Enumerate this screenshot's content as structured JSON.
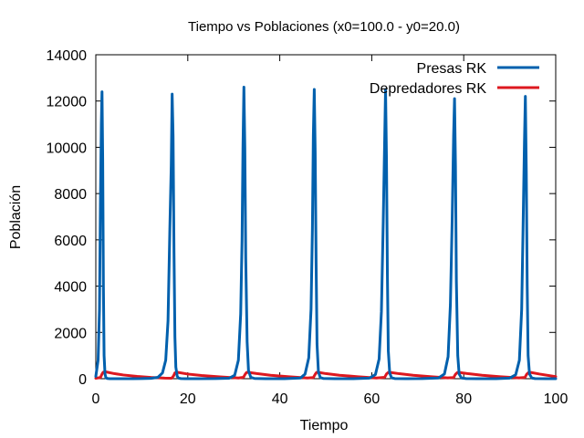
{
  "chart_data": {
    "type": "line",
    "title": "Tiempo vs Poblaciones (x0=100.0 - y0=20.0)",
    "xlabel": "Tiempo",
    "ylabel": "Población",
    "xlim": [
      0,
      100
    ],
    "ylim": [
      0,
      14000
    ],
    "xticks": [
      0,
      20,
      40,
      60,
      80,
      100
    ],
    "yticks": [
      0,
      2000,
      4000,
      6000,
      8000,
      10000,
      12000,
      14000
    ],
    "xtick_labels": [
      "0",
      "20",
      "40",
      "60",
      "80",
      "100"
    ],
    "ytick_labels": [
      "0",
      "2000",
      "4000",
      "6000",
      "8000",
      "10000",
      "12000",
      "14000"
    ],
    "grid": false,
    "legend_position": "top-right",
    "series": [
      {
        "name": "Presas RK",
        "color": "#0060ad",
        "x": [
          0,
          0.5,
          0.8,
          1.0,
          1.2,
          1.35,
          1.5,
          1.65,
          1.8,
          2.0,
          2.2,
          2.5,
          3.0,
          4.0,
          6.0,
          8.0,
          10.0,
          12.0,
          13.5,
          14.5,
          15.2,
          15.7,
          16.1,
          16.4,
          16.6,
          16.8,
          17.0,
          17.2,
          17.4,
          17.7,
          18.0,
          18.5,
          19.5,
          22.0,
          26.0,
          29.0,
          30.2,
          31.0,
          31.5,
          31.8,
          32.0,
          32.2,
          32.4,
          32.6,
          32.9,
          33.2,
          33.7,
          34.5,
          37.0,
          41.0,
          44.5,
          45.5,
          46.3,
          46.8,
          47.1,
          47.3,
          47.5,
          47.7,
          47.9,
          48.1,
          48.4,
          48.8,
          49.5,
          52.0,
          56.0,
          59.5,
          60.8,
          61.6,
          62.1,
          62.5,
          62.8,
          63.0,
          63.2,
          63.4,
          63.6,
          63.9,
          64.3,
          65.0,
          67.5,
          71.0,
          74.5,
          75.8,
          76.6,
          77.1,
          77.5,
          77.8,
          78.0,
          78.2,
          78.4,
          78.7,
          79.0,
          79.5,
          80.5,
          83.0,
          87.0,
          90.0,
          91.3,
          92.1,
          92.6,
          92.9,
          93.2,
          93.4,
          93.6,
          93.8,
          94.0,
          94.3,
          94.8,
          95.5,
          98.0,
          100.0
        ],
        "values": [
          100,
          800,
          3000,
          7500,
          11000,
          12400,
          9500,
          4000,
          1000,
          200,
          40,
          10,
          2,
          1,
          1,
          2,
          4,
          15,
          60,
          250,
          800,
          2500,
          6500,
          9200,
          12300,
          10500,
          5500,
          1800,
          500,
          100,
          25,
          5,
          1,
          1,
          3,
          20,
          150,
          800,
          2800,
          6000,
          10000,
          12600,
          10000,
          5200,
          1600,
          350,
          60,
          10,
          1,
          2,
          30,
          200,
          900,
          3000,
          6500,
          10500,
          12500,
          9800,
          5000,
          1500,
          300,
          50,
          8,
          1,
          2,
          25,
          180,
          850,
          2900,
          6800,
          10200,
          12500,
          9500,
          4500,
          1200,
          250,
          40,
          6,
          1,
          3,
          30,
          200,
          950,
          3200,
          7000,
          10500,
          12100,
          9200,
          4200,
          1000,
          200,
          30,
          5,
          1,
          2,
          25,
          170,
          800,
          3000,
          6500,
          10200,
          12200,
          9000,
          4000,
          1000,
          200,
          30,
          5,
          1,
          2
        ]
      },
      {
        "name": "Depredadores RK",
        "color": "#dd181f",
        "x": [
          0,
          1.0,
          1.3,
          1.6,
          2.0,
          2.5,
          4.0,
          6.0,
          9.0,
          12.0,
          15.0,
          16.5,
          16.9,
          17.2,
          17.6,
          18.2,
          20.0,
          23.0,
          27.0,
          31.0,
          32.1,
          32.5,
          32.8,
          33.3,
          35.0,
          38.0,
          42.0,
          46.0,
          47.3,
          47.7,
          48.0,
          48.5,
          50.0,
          53.0,
          57.0,
          61.0,
          62.8,
          63.2,
          63.6,
          64.2,
          66.0,
          69.0,
          73.0,
          76.5,
          77.8,
          78.2,
          78.6,
          79.2,
          81.0,
          84.0,
          88.0,
          92.0,
          93.3,
          93.7,
          94.1,
          94.7,
          96.5,
          100.0
        ],
        "values": [
          20,
          50,
          180,
          280,
          300,
          280,
          220,
          160,
          100,
          55,
          25,
          20,
          120,
          250,
          280,
          260,
          200,
          140,
          80,
          30,
          60,
          200,
          270,
          270,
          220,
          150,
          85,
          30,
          50,
          190,
          270,
          270,
          220,
          150,
          85,
          30,
          60,
          200,
          270,
          265,
          215,
          150,
          85,
          35,
          50,
          190,
          265,
          265,
          215,
          150,
          85,
          35,
          55,
          195,
          270,
          265,
          200,
          90
        ]
      }
    ]
  }
}
